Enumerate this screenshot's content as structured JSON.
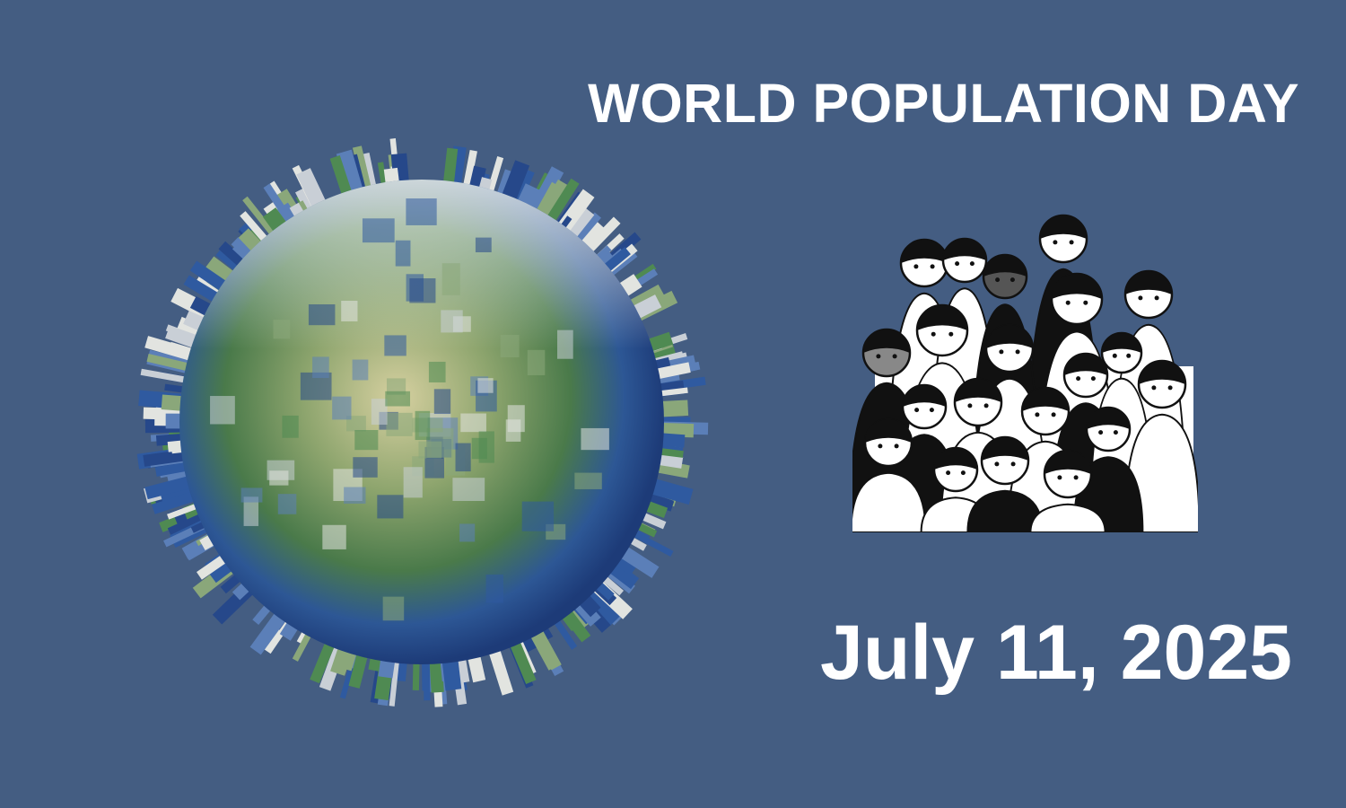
{
  "title": "WORLD POPULATION DAY",
  "date": "July 11, 2025",
  "colors": {
    "background": "#445d82",
    "text": "#ffffff"
  },
  "images": {
    "globe": "globe-of-skyscrapers-illustration",
    "crowd": "crowd-of-people-line-illustration"
  }
}
